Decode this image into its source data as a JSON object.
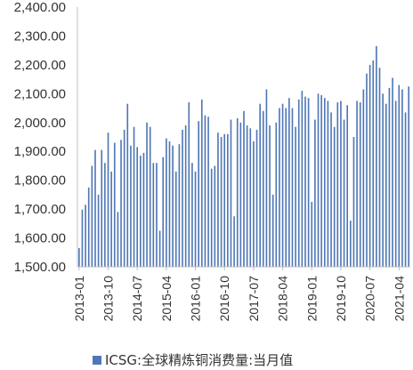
{
  "chart_data": {
    "type": "bar",
    "start_month": "2013-01",
    "ylim": [
      1500,
      2400
    ],
    "yticks": [
      "1,500.00",
      "1,600.00",
      "1,700.00",
      "1,800.00",
      "1,900.00",
      "2,000.00",
      "2,100.00",
      "2,200.00",
      "2,300.00",
      "2,400.00"
    ],
    "xticks": [
      "2013-01",
      "2013-10",
      "2014-07",
      "2015-04",
      "2016-01",
      "2016-10",
      "2017-07",
      "2018-04",
      "2019-01",
      "2019-10",
      "2020-07",
      "2021-04"
    ],
    "series": [
      {
        "name": "ICSG:全球精炼铜消费量:当月值",
        "color": "#4f77b5",
        "values": [
          1565,
          1698,
          1715,
          1775,
          1850,
          1905,
          1750,
          1905,
          1860,
          1965,
          1830,
          1930,
          1690,
          1940,
          1975,
          2065,
          1920,
          1985,
          1915,
          1885,
          1895,
          2000,
          1985,
          1860,
          1860,
          1625,
          1880,
          1945,
          1935,
          1920,
          1830,
          1925,
          1975,
          1990,
          2070,
          1860,
          1830,
          2005,
          2080,
          2025,
          2020,
          1840,
          1850,
          1965,
          1950,
          1960,
          1960,
          2010,
          1675,
          2015,
          2000,
          2040,
          1990,
          1980,
          1935,
          1975,
          2065,
          2040,
          2115,
          1990,
          1750,
          2000,
          2050,
          2065,
          2050,
          2085,
          2050,
          1985,
          2080,
          2110,
          2090,
          2085,
          1725,
          2010,
          2100,
          2095,
          2085,
          2075,
          2035,
          1985,
          2070,
          2075,
          2010,
          2060,
          1660,
          1950,
          2075,
          2070,
          2115,
          2170,
          2200,
          2215,
          2265,
          2190,
          2100,
          2065,
          2120,
          2155,
          2075,
          2130,
          2115,
          2035,
          2125
        ]
      }
    ],
    "legend_position": "bottom",
    "grid": false
  }
}
